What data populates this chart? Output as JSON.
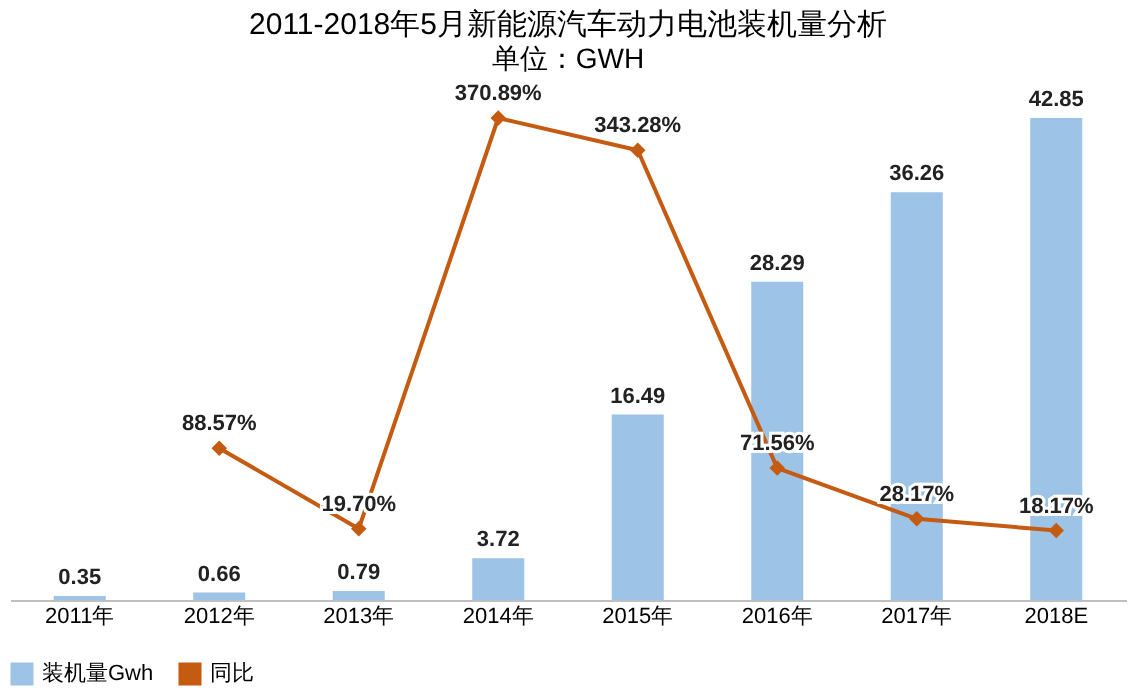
{
  "chart_data": {
    "type": "bar",
    "title": "2011-2018年5月新能源汽车动力电池装机量分析",
    "subtitle": "单位：GWH",
    "categories": [
      "2011年",
      "2012年",
      "2013年",
      "2014年",
      "2015年",
      "2016年",
      "2017年",
      "2018E"
    ],
    "series": [
      {
        "name": "装机量Gwh",
        "color": "#9dc3e6",
        "values": [
          0.35,
          0.66,
          0.79,
          3.72,
          16.49,
          28.29,
          36.26,
          42.85
        ],
        "value_labels": [
          "0.35",
          "0.66",
          "0.79",
          "3.72",
          "16.49",
          "28.29",
          "36.26",
          "42.85"
        ]
      },
      {
        "name": "同比",
        "type": "line",
        "axis": "y2",
        "color": "#c55a11",
        "values": [
          null,
          88.57,
          19.7,
          370.89,
          343.28,
          71.56,
          28.17,
          18.17
        ],
        "value_labels": [
          null,
          "88.57%",
          "19.70%",
          "370.89%",
          "343.28%",
          "71.56%",
          "28.17%",
          "18.17%"
        ]
      }
    ],
    "legend": "bottom",
    "marker": "diamond",
    "tick_labels": "x"
  }
}
